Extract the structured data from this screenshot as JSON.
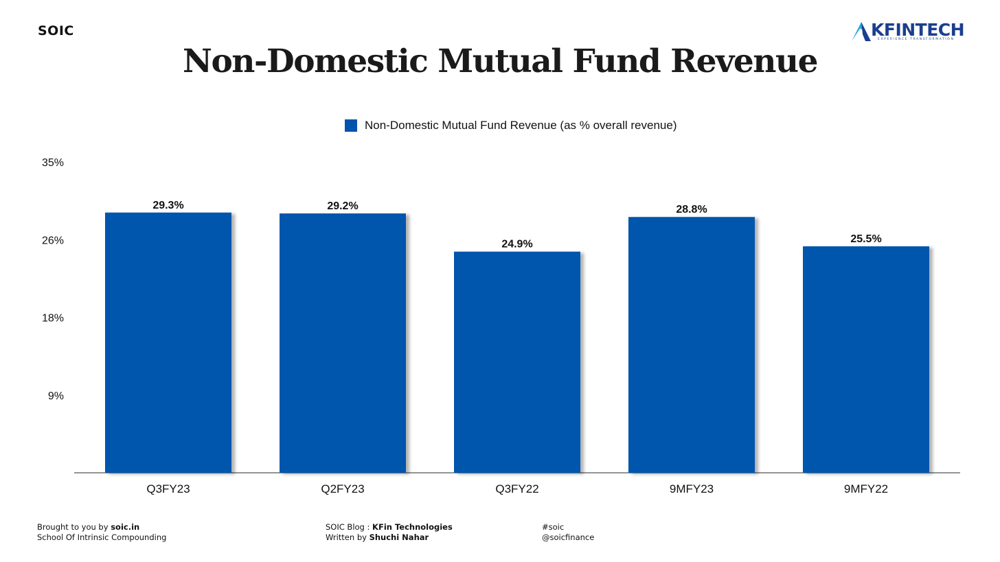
{
  "brand": "SOIC",
  "logo": {
    "text": "KFINTECH",
    "tagline": "EXPERIENCE TRANSFORMATION",
    "color": "#1b3f8f"
  },
  "chart_data": {
    "type": "bar",
    "title": "Non-Domestic Mutual Fund Revenue",
    "categories": [
      "Q3FY23",
      "Q2FY23",
      "Q3FY22",
      "9MFY23",
      "9MFY22"
    ],
    "series": [
      {
        "name": "Non-Domestic Mutual Fund Revenue (as % overall revenue)",
        "values": [
          29.3,
          29.2,
          24.9,
          28.8,
          25.5
        ],
        "labels": [
          "29.3%",
          "29.2%",
          "24.9%",
          "28.8%",
          "25.5%"
        ],
        "color": "#0054ad"
      }
    ],
    "yticks": [
      {
        "value": 8.75,
        "label": "9%"
      },
      {
        "value": 17.5,
        "label": "18%"
      },
      {
        "value": 26.25,
        "label": "26%"
      },
      {
        "value": 35,
        "label": "35%"
      }
    ],
    "ylim": [
      0,
      35
    ],
    "grid": false,
    "legend_position": "top-center"
  },
  "footer": {
    "brought_prefix": "Brought to you by ",
    "brought_site": "soic.in",
    "school": "School Of Intrinsic Compounding",
    "blog_prefix": "SOIC Blog : ",
    "blog_name": "KFin Technologies",
    "written_prefix": "Written by ",
    "author": "Shuchi Nahar",
    "hashtag": "#soic",
    "handle": "@soicfinance"
  }
}
